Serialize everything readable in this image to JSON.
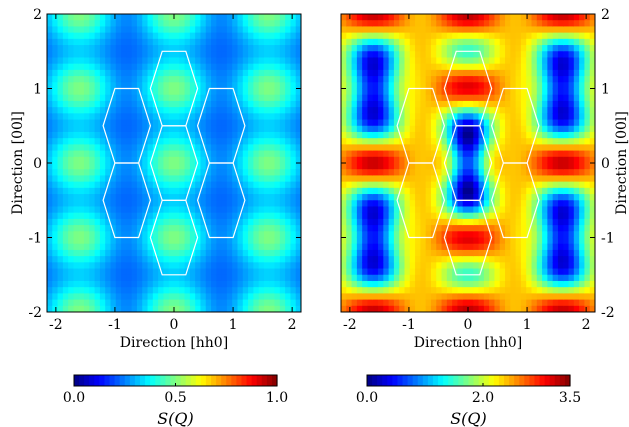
{
  "chart_data": [
    {
      "type": "heatmap",
      "panel": "left",
      "xlabel": "Direction [hh0]",
      "ylabel": "Direction [00l]",
      "xlim": [
        -2.15,
        2.15
      ],
      "ylim": [
        -2,
        2
      ],
      "xticks": [
        "-2",
        "-1",
        "0",
        "1",
        "2"
      ],
      "yticks": [
        "-2",
        "-1",
        "0",
        "1",
        "2"
      ],
      "colormap": "jet",
      "vmin": 0.0,
      "vmax": 1.0,
      "overlay": "white hexagonal Brillouin-zone outlines",
      "description_values": {
        "max_near": [
          [
            0,
            1.0
          ],
          [
            0,
            0
          ],
          [
            0,
            -1.0
          ],
          [
            -0.8,
            0
          ],
          [
            0.8,
            0
          ]
        ],
        "min_near": [
          [
            -1.6,
            1.0
          ],
          [
            1.6,
            1.0
          ],
          [
            -1.6,
            -1.0
          ],
          [
            1.6,
            -1.0
          ],
          [
            0,
            0.5
          ],
          [
            0,
            -0.5
          ]
        ],
        "approx_max_value": 0.5,
        "approx_min_value": 0.12
      },
      "colorbar": {
        "label": "S(Q)",
        "ticks": [
          "0.0",
          "0.5",
          "1.0"
        ]
      }
    },
    {
      "type": "heatmap",
      "panel": "right",
      "xlabel": "Direction [hh0]",
      "ylabel": "Direction [00l]",
      "xlim": [
        -2.15,
        2.15
      ],
      "ylim": [
        -2,
        2
      ],
      "xticks": [
        "-2",
        "-1",
        "0",
        "1",
        "2"
      ],
      "yticks": [
        "-2",
        "-1",
        "0",
        "1",
        "2"
      ],
      "colormap": "jet",
      "vmin": 0.0,
      "vmax": 3.5,
      "overlay": "white hexagonal Brillouin-zone outlines",
      "description_values": {
        "max_near": [
          [
            -0.8,
            0
          ],
          [
            0.8,
            0
          ],
          [
            0,
            1.0
          ],
          [
            0,
            -1.0
          ],
          [
            0,
            2.0
          ],
          [
            0,
            -2.0
          ]
        ],
        "min_near": [
          [
            -1.6,
            1.0
          ],
          [
            1.6,
            1.0
          ],
          [
            -1.6,
            -1.0
          ],
          [
            1.6,
            -1.0
          ],
          [
            0,
            0
          ]
        ],
        "approx_max_value": 3.3,
        "approx_min_value": 0.1
      },
      "colorbar": {
        "label": "S(Q)",
        "ticks": [
          "0.0",
          "2.0",
          "3.5"
        ]
      }
    }
  ],
  "colors": {
    "jet_stops": [
      "#00007f",
      "#0000ff",
      "#007fff",
      "#00ffff",
      "#7fff7f",
      "#ffff00",
      "#ff7f00",
      "#ff0000",
      "#7f0000"
    ],
    "overlay": "#ffffff"
  }
}
